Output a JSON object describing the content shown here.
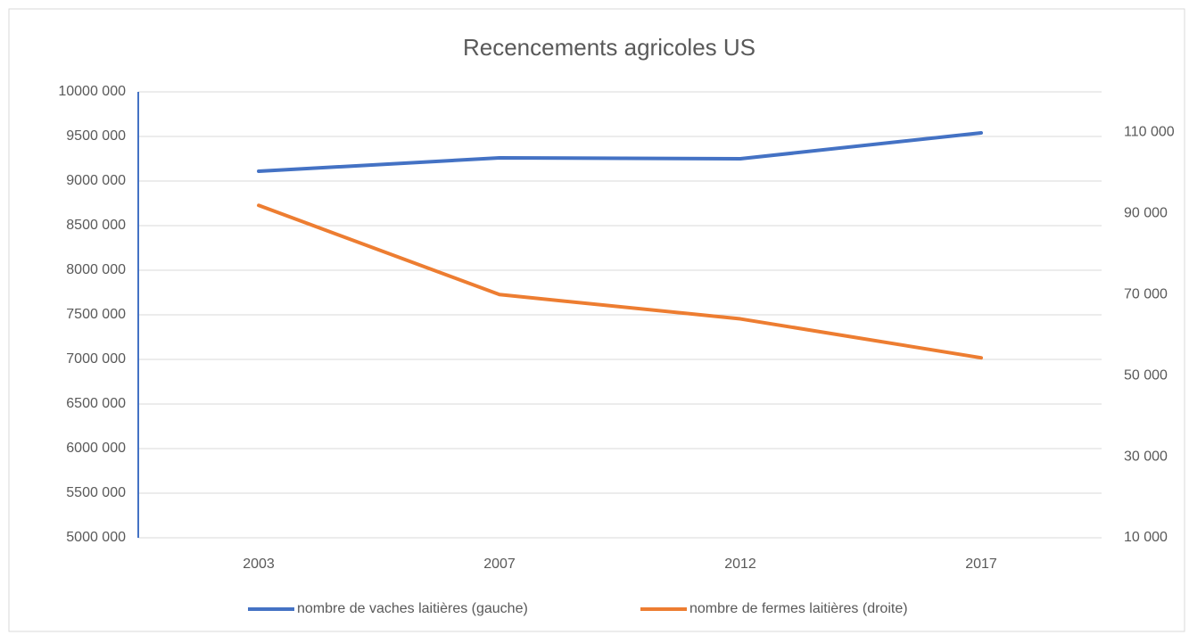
{
  "chart_data": {
    "type": "line",
    "title": "Recencements agricoles US",
    "categories": [
      "2003",
      "2007",
      "2012",
      "2017"
    ],
    "series": [
      {
        "name": "nombre de vaches laitières (gauche)",
        "color": "#4472c4",
        "values": [
          9110000,
          9260000,
          9250000,
          9540000
        ]
      },
      {
        "name": "nombre de fermes laitières (droite)",
        "color": "#ed7d31",
        "values": [
          92000,
          70000,
          64000,
          54400
        ],
        "axis": "y2"
      }
    ],
    "ylim": [
      5000000,
      10000000
    ],
    "yticks": [
      {
        "value": 5000000,
        "label": "5000 000"
      },
      {
        "value": 5500000,
        "label": "5500 000"
      },
      {
        "value": 6000000,
        "label": "6000 000"
      },
      {
        "value": 6500000,
        "label": "6500 000"
      },
      {
        "value": 7000000,
        "label": "7000 000"
      },
      {
        "value": 7500000,
        "label": "7500 000"
      },
      {
        "value": 8000000,
        "label": "8000 000"
      },
      {
        "value": 8500000,
        "label": "8500 000"
      },
      {
        "value": 9000000,
        "label": "9000 000"
      },
      {
        "value": 9500000,
        "label": "9500 000"
      },
      {
        "value": 10000000,
        "label": "10000 000"
      }
    ],
    "y2lim": [
      10000,
      120000
    ],
    "y2ticks": [
      {
        "value": 10000,
        "label": "10 000"
      },
      {
        "value": 30000,
        "label": "30 000"
      },
      {
        "value": 50000,
        "label": "50 000"
      },
      {
        "value": 70000,
        "label": "70 000"
      },
      {
        "value": 90000,
        "label": "90 000"
      },
      {
        "value": 110000,
        "label": "110 000"
      }
    ],
    "grid": true,
    "legend": "bottom"
  }
}
